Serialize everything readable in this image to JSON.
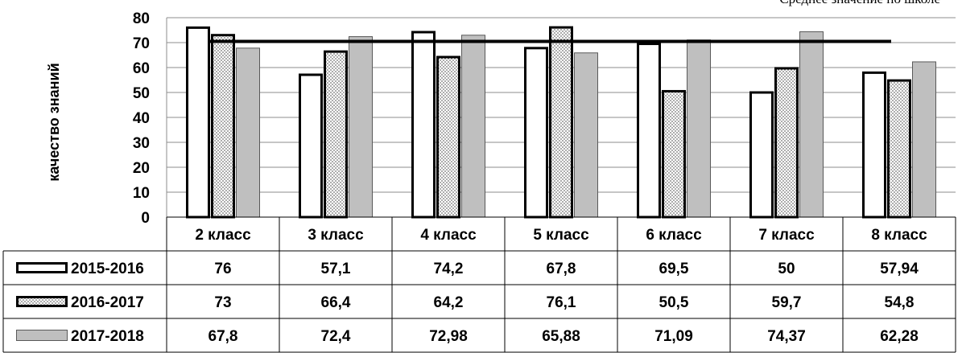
{
  "chart_data": {
    "type": "bar",
    "ylabel": "качество знаний",
    "ylim": [
      0,
      80
    ],
    "yticks": [
      0,
      10,
      20,
      30,
      40,
      50,
      60,
      70,
      80
    ],
    "grid": true,
    "categories": [
      "2 класс",
      "3 класс",
      "4 класс",
      "5 класс",
      "6 класс",
      "7 класс",
      "8 класс"
    ],
    "series": [
      {
        "name": "2015-2016",
        "values": [
          76,
          57.1,
          74.2,
          67.8,
          69.5,
          50,
          57.94
        ],
        "labels": [
          "76",
          "57,1",
          "74,2",
          "67,8",
          "69,5",
          "50",
          "57,94"
        ],
        "fill": "#ffffff",
        "stroke": "#000000",
        "pattern": "none"
      },
      {
        "name": "2016-2017",
        "values": [
          73,
          66.4,
          64.2,
          76.1,
          50.5,
          59.7,
          54.8
        ],
        "labels": [
          "73",
          "66,4",
          "64,2",
          "76,1",
          "50,5",
          "59,7",
          "54,8"
        ],
        "fill": "#ffffff",
        "stroke": "#000000",
        "pattern": "dots"
      },
      {
        "name": "2017-2018",
        "values": [
          67.8,
          72.4,
          72.98,
          65.88,
          71.09,
          74.37,
          62.28
        ],
        "labels": [
          "67,8",
          "72,4",
          "72,98",
          "65,88",
          "71,09",
          "74,37",
          "62,28"
        ],
        "fill": "#bfbfbf",
        "stroke": "#595959",
        "pattern": "none"
      }
    ],
    "reference_line": {
      "name": "Среднее значение по школе",
      "value": 70.5,
      "color": "#000000"
    },
    "legend": "table-below"
  }
}
